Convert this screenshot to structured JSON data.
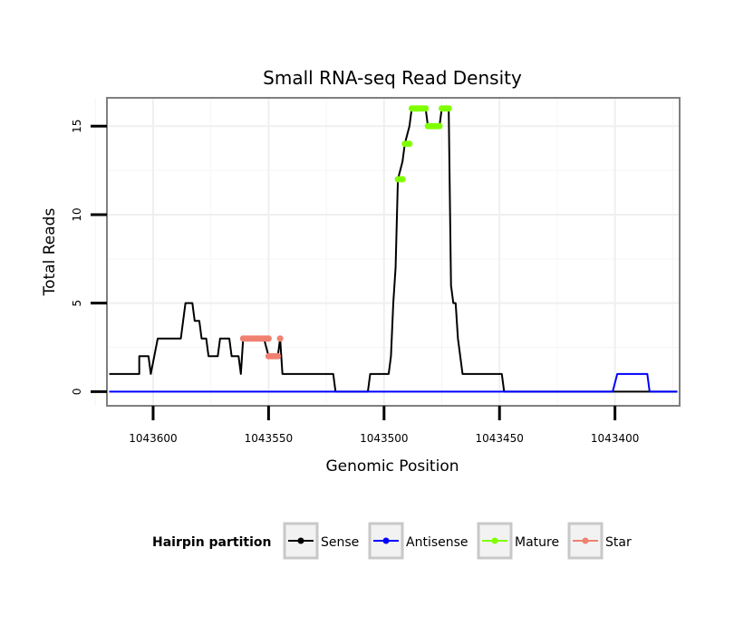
{
  "chart_data": {
    "type": "line",
    "title": "Small RNA-seq Read Density",
    "xlabel": "Genomic Position",
    "ylabel": "Total Reads",
    "xlim": [
      1043620,
      1043372
    ],
    "ylim": [
      -0.8,
      16.6
    ],
    "x_reversed": true,
    "x_ticks": [
      1043600,
      1043550,
      1043500,
      1043450,
      1043400
    ],
    "x_tick_labels": [
      "1043600",
      "1043550",
      "1043500",
      "1043450",
      "1043400"
    ],
    "y_ticks": [
      0,
      5,
      10,
      15
    ],
    "y_tick_labels": [
      "0",
      "5",
      "10",
      "15"
    ],
    "grid": true,
    "legend_position": "bottom",
    "legend_title": "Hairpin partition",
    "series": [
      {
        "name": "Sense",
        "color": "#000000",
        "kind": "line",
        "points": [
          [
            1043619,
            1
          ],
          [
            1043606,
            1
          ],
          [
            1043606,
            2
          ],
          [
            1043602,
            2
          ],
          [
            1043601,
            1
          ],
          [
            1043598,
            3
          ],
          [
            1043588,
            3
          ],
          [
            1043586,
            5
          ],
          [
            1043583,
            5
          ],
          [
            1043582,
            4
          ],
          [
            1043580,
            4
          ],
          [
            1043579,
            3
          ],
          [
            1043577,
            3
          ],
          [
            1043576,
            2
          ],
          [
            1043572,
            2
          ],
          [
            1043571,
            3
          ],
          [
            1043567,
            3
          ],
          [
            1043566,
            2
          ],
          [
            1043563,
            2
          ],
          [
            1043562,
            1
          ],
          [
            1043561,
            3
          ],
          [
            1043552,
            3
          ],
          [
            1043550,
            2
          ],
          [
            1043546,
            2
          ],
          [
            1043545,
            3
          ],
          [
            1043544,
            1
          ],
          [
            1043522,
            1
          ],
          [
            1043521,
            0
          ],
          [
            1043507,
            0
          ],
          [
            1043506,
            1
          ],
          [
            1043498,
            1
          ],
          [
            1043497,
            2
          ],
          [
            1043496,
            5
          ],
          [
            1043495,
            7
          ],
          [
            1043494,
            12
          ],
          [
            1043492,
            13
          ],
          [
            1043491,
            14
          ],
          [
            1043489,
            15
          ],
          [
            1043488,
            16
          ],
          [
            1043482,
            16
          ],
          [
            1043481,
            15
          ],
          [
            1043476,
            15
          ],
          [
            1043475,
            16
          ],
          [
            1043472,
            16
          ],
          [
            1043471,
            6
          ],
          [
            1043470,
            5
          ],
          [
            1043469,
            5
          ],
          [
            1043468,
            3
          ],
          [
            1043466,
            1
          ],
          [
            1043449,
            1
          ],
          [
            1043448,
            0
          ],
          [
            1043373,
            0
          ]
        ]
      },
      {
        "name": "Antisense",
        "color": "#0000ff",
        "kind": "line",
        "points": [
          [
            1043619,
            0
          ],
          [
            1043401,
            0
          ],
          [
            1043399,
            1
          ],
          [
            1043386,
            1
          ],
          [
            1043385,
            0
          ],
          [
            1043373,
            0
          ]
        ]
      },
      {
        "name": "Mature",
        "color": "#7fff00",
        "kind": "points",
        "points": [
          [
            1043494,
            12
          ],
          [
            1043493,
            12
          ],
          [
            1043492,
            12
          ],
          [
            1043491,
            14
          ],
          [
            1043490,
            14
          ],
          [
            1043489,
            14
          ],
          [
            1043488,
            16
          ],
          [
            1043487,
            16
          ],
          [
            1043486,
            16
          ],
          [
            1043485,
            16
          ],
          [
            1043484,
            16
          ],
          [
            1043483,
            16
          ],
          [
            1043482,
            16
          ],
          [
            1043481,
            15
          ],
          [
            1043480,
            15
          ],
          [
            1043479,
            15
          ],
          [
            1043478,
            15
          ],
          [
            1043477,
            15
          ],
          [
            1043476,
            15
          ],
          [
            1043475,
            16
          ],
          [
            1043474,
            16
          ],
          [
            1043473,
            16
          ],
          [
            1043472,
            16
          ]
        ]
      },
      {
        "name": "Star",
        "color": "#f08070",
        "kind": "points",
        "points": [
          [
            1043561,
            3
          ],
          [
            1043560,
            3
          ],
          [
            1043559,
            3
          ],
          [
            1043558,
            3
          ],
          [
            1043557,
            3
          ],
          [
            1043556,
            3
          ],
          [
            1043555,
            3
          ],
          [
            1043554,
            3
          ],
          [
            1043553,
            3
          ],
          [
            1043552,
            3
          ],
          [
            1043551,
            3
          ],
          [
            1043550,
            3
          ],
          [
            1043550,
            2
          ],
          [
            1043549,
            2
          ],
          [
            1043548,
            2
          ],
          [
            1043547,
            2
          ],
          [
            1043546,
            2
          ],
          [
            1043545,
            3
          ]
        ]
      }
    ]
  }
}
